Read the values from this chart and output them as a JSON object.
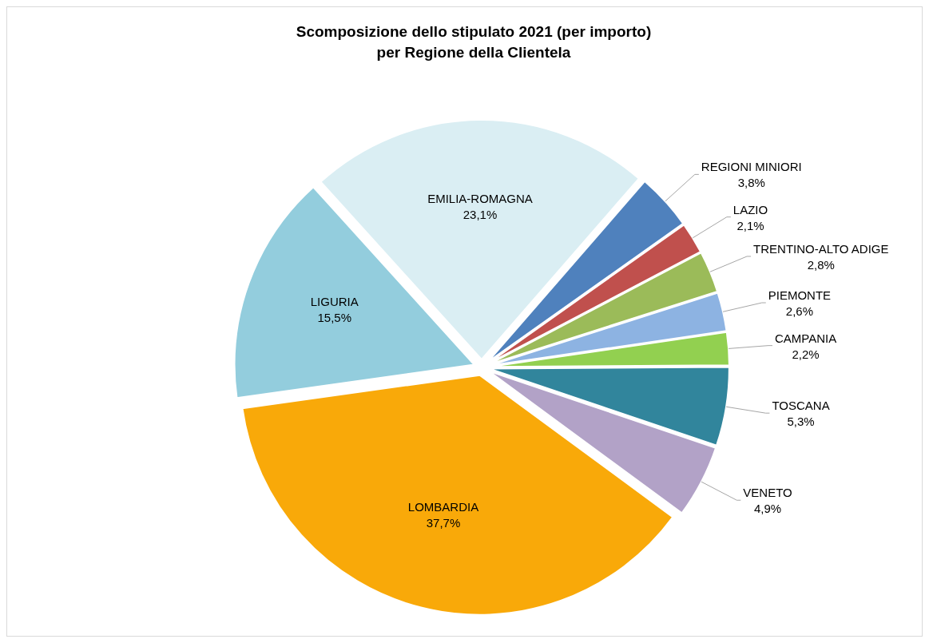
{
  "chart_data": {
    "type": "pie",
    "title": "Scomposizione dello stipulato 2021 (per importo)\nper Regione della Clientela",
    "categories": [
      "REGIONI  MINIORI",
      "LAZIO",
      "TRENTINO-ALTO  ADIGE",
      "PIEMONTE",
      "CAMPANIA",
      "TOSCANA",
      "VENETO",
      "LOMBARDIA",
      "LIGURIA",
      "EMILIA-ROMAGNA"
    ],
    "values": [
      3.8,
      2.1,
      2.8,
      2.6,
      2.2,
      5.3,
      4.9,
      37.7,
      15.5,
      23.1
    ],
    "value_labels": [
      "3,8%",
      "2,1%",
      "2,8%",
      "2,6%",
      "2,2%",
      "5,3%",
      "4,9%",
      "37,7%",
      "15,5%",
      "23,1%"
    ],
    "colors": [
      "#4f81bd",
      "#c0504d",
      "#9bbb59",
      "#8db3e2",
      "#92d050",
      "#31859c",
      "#b2a2c7",
      "#f9a909",
      "#93cddd",
      "#daeef3"
    ]
  }
}
